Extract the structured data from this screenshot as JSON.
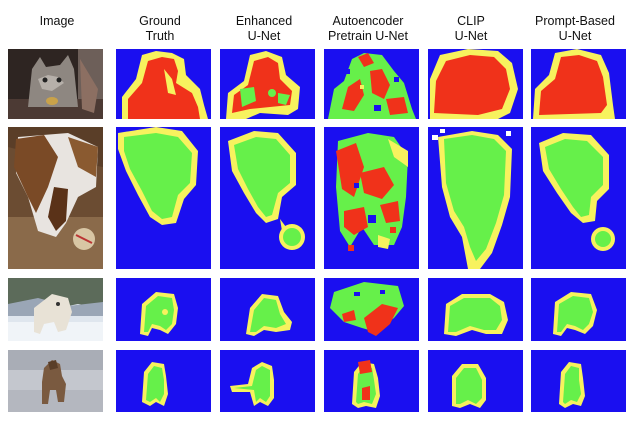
{
  "headers": [
    {
      "line1": "Image",
      "line2": ""
    },
    {
      "line1": "Ground",
      "line2": "Truth"
    },
    {
      "line1": "Enhanced",
      "line2": "U-Net"
    },
    {
      "line1": "Autoencoder",
      "line2": "Pretrain U-Net"
    },
    {
      "line1": "CLIP",
      "line2": "U-Net"
    },
    {
      "line1": "Prompt-Based",
      "line2": "U-Net"
    }
  ],
  "colors": {
    "background": "#1a0ff0",
    "foreground_dog": "#66f04a",
    "foreground_cat": "#f0321a",
    "boundary": "#f7f25e"
  },
  "rows": [
    {
      "subject": "cat",
      "photo_tone": [
        "#3b2f2c",
        "#8a7d74"
      ]
    },
    {
      "subject": "dog",
      "photo_tone": [
        "#6b4a2e",
        "#d9cbb8"
      ]
    },
    {
      "subject": "dog",
      "photo_tone": [
        "#7d8ea3",
        "#e9eef2"
      ]
    },
    {
      "subject": "dog",
      "photo_tone": [
        "#8d8f98",
        "#c9ccd2"
      ]
    }
  ]
}
